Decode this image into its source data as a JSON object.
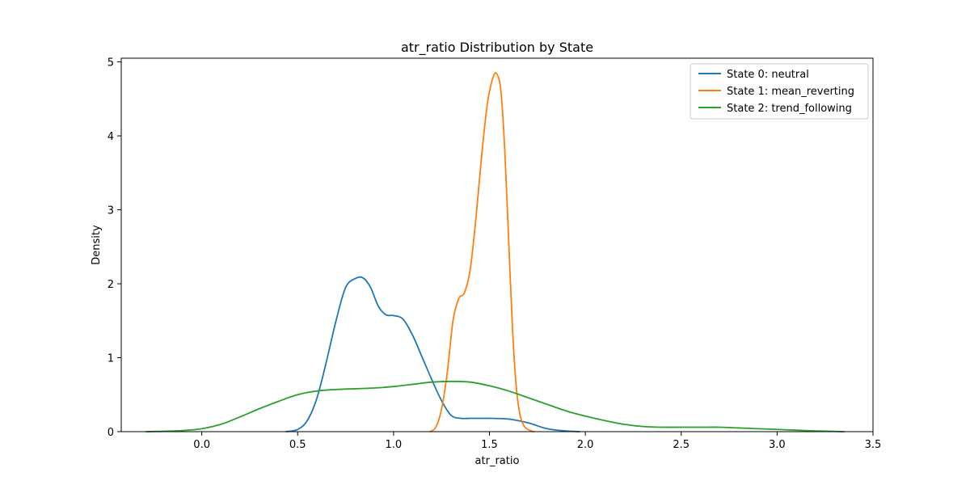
{
  "chart_data": {
    "type": "line",
    "title": "atr_ratio Distribution by State",
    "xlabel": "atr_ratio",
    "ylabel": "Density",
    "xlim": [
      -0.42,
      3.5
    ],
    "ylim": [
      0,
      5.05
    ],
    "xticks": [
      0.0,
      0.5,
      1.0,
      1.5,
      2.0,
      2.5,
      3.0,
      3.5
    ],
    "xtick_labels": [
      "0.0",
      "0.5",
      "1.0",
      "1.5",
      "2.0",
      "2.5",
      "3.0",
      "3.5"
    ],
    "yticks": [
      0,
      1,
      2,
      3,
      4,
      5
    ],
    "ytick_labels": [
      "0",
      "1",
      "2",
      "3",
      "4",
      "5"
    ],
    "grid": false,
    "legend_position": "top-right",
    "series": [
      {
        "name": "State 0: neutral",
        "color": "#1f77b4",
        "x": [
          0.44,
          0.5,
          0.55,
          0.6,
          0.65,
          0.7,
          0.75,
          0.8,
          0.84,
          0.88,
          0.92,
          0.96,
          1.0,
          1.05,
          1.1,
          1.15,
          1.2,
          1.25,
          1.3,
          1.35,
          1.4,
          1.5,
          1.6,
          1.7,
          1.8,
          1.9,
          1.97
        ],
        "y": [
          0.0,
          0.03,
          0.15,
          0.45,
          0.95,
          1.5,
          1.95,
          2.07,
          2.08,
          1.95,
          1.7,
          1.58,
          1.57,
          1.52,
          1.3,
          1.0,
          0.7,
          0.42,
          0.22,
          0.18,
          0.18,
          0.18,
          0.17,
          0.12,
          0.04,
          0.01,
          0.0
        ]
      },
      {
        "name": "State 1: mean_reverting",
        "color": "#ff7f0e",
        "x": [
          1.19,
          1.22,
          1.25,
          1.28,
          1.31,
          1.34,
          1.37,
          1.4,
          1.43,
          1.46,
          1.49,
          1.52,
          1.54,
          1.56,
          1.58,
          1.6,
          1.62,
          1.64,
          1.66,
          1.68,
          1.7,
          1.73
        ],
        "y": [
          0.0,
          0.06,
          0.3,
          0.8,
          1.5,
          1.8,
          1.88,
          2.2,
          2.9,
          3.75,
          4.45,
          4.8,
          4.83,
          4.6,
          3.8,
          2.6,
          1.4,
          0.6,
          0.22,
          0.08,
          0.03,
          0.0
        ]
      },
      {
        "name": "State 2: trend_following",
        "color": "#2ca02c",
        "x": [
          -0.29,
          -0.2,
          -0.1,
          0.0,
          0.1,
          0.2,
          0.3,
          0.4,
          0.5,
          0.6,
          0.7,
          0.8,
          0.9,
          1.0,
          1.1,
          1.2,
          1.3,
          1.4,
          1.5,
          1.6,
          1.7,
          1.8,
          1.9,
          2.0,
          2.1,
          2.2,
          2.3,
          2.4,
          2.5,
          2.6,
          2.7,
          2.8,
          2.9,
          3.0,
          3.1,
          3.2,
          3.35
        ],
        "y": [
          0.0,
          0.005,
          0.015,
          0.04,
          0.1,
          0.2,
          0.31,
          0.41,
          0.5,
          0.55,
          0.57,
          0.58,
          0.59,
          0.61,
          0.64,
          0.67,
          0.68,
          0.67,
          0.62,
          0.55,
          0.46,
          0.37,
          0.28,
          0.21,
          0.15,
          0.1,
          0.07,
          0.06,
          0.06,
          0.06,
          0.06,
          0.05,
          0.04,
          0.03,
          0.02,
          0.01,
          0.0
        ]
      }
    ]
  }
}
